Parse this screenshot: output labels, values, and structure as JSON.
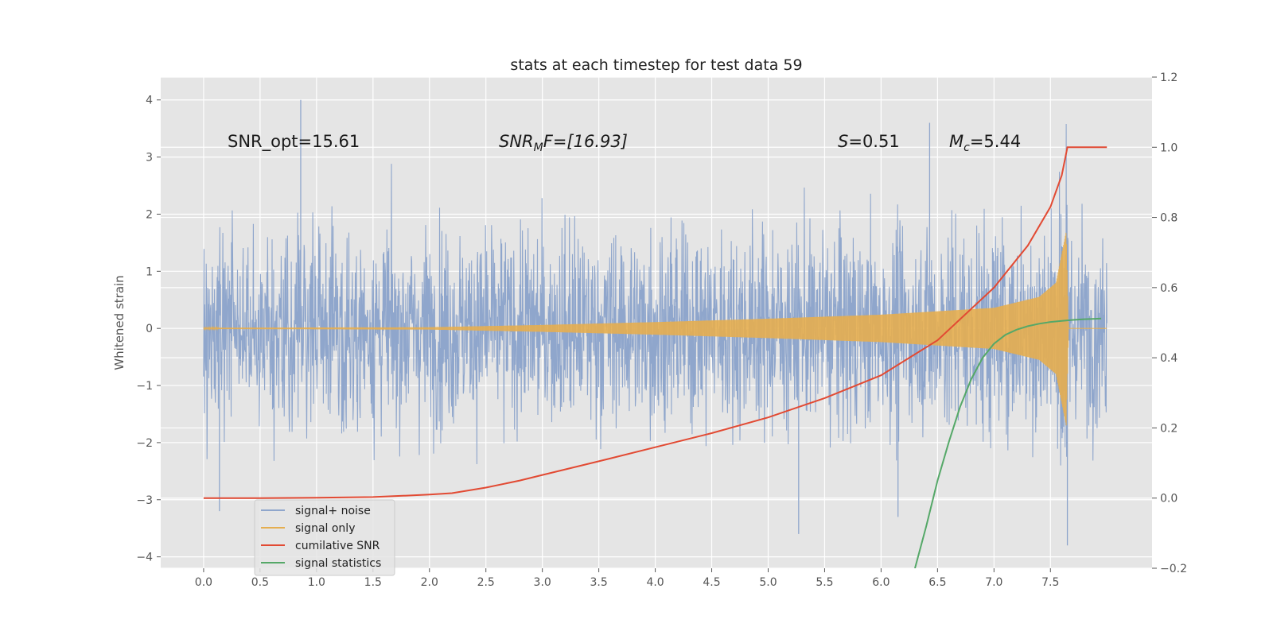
{
  "chart_data": {
    "type": "line",
    "title": "stats at each timestep for test data 59",
    "ylabel": "Whitened strain",
    "xlim": [
      -0.38,
      8.4
    ],
    "xticks": [
      0.0,
      0.5,
      1.0,
      1.5,
      2.0,
      2.5,
      3.0,
      3.5,
      4.0,
      4.5,
      5.0,
      5.5,
      6.0,
      6.5,
      7.0,
      7.5
    ],
    "xtick_labels": [
      "0.0",
      "0.5",
      "1.0",
      "1.5",
      "2.0",
      "2.5",
      "3.0",
      "3.5",
      "4.0",
      "4.5",
      "5.0",
      "5.5",
      "6.0",
      "6.5",
      "7.0",
      "7.5"
    ],
    "ylim_left": [
      -4.2,
      4.4
    ],
    "yticks_left": [
      4,
      3,
      2,
      1,
      0,
      -1,
      -2,
      -3,
      -4
    ],
    "ytick_labels_left": [
      "4",
      "3",
      "2",
      "1",
      "0",
      "−1",
      "−2",
      "−3",
      "−4"
    ],
    "ylim_right": [
      -0.2,
      1.2
    ],
    "yticks_right": [
      1.2,
      1.0,
      0.8,
      0.6,
      0.4,
      0.2,
      0.0,
      -0.2
    ],
    "ytick_labels_right": [
      "1.2",
      "1.0",
      "0.8",
      "0.6",
      "0.4",
      "0.2",
      "0.0",
      "−0.2"
    ],
    "grid": true,
    "legend_position": "lower-left",
    "annotations": {
      "snr_opt": "SNR_opt=15.61",
      "snr_mf_main": "SNR",
      "snr_mf_sub": "M",
      "snr_mf_rest": "F=[16.93]",
      "s_var": "S",
      "s_val": "=0.51",
      "mc_var": "M",
      "mc_sub": "c",
      "mc_val": "=5.44"
    },
    "series": [
      {
        "name": "signal+ noise",
        "color": "#8fa6cc",
        "axis": "left",
        "x_range": [
          0.0,
          8.0
        ],
        "envelope_abs": [
          2.5,
          2.8,
          3.0,
          2.9,
          2.7,
          2.8,
          3.0,
          3.1,
          3.0,
          2.8,
          2.9,
          3.3,
          3.0,
          2.8,
          3.1,
          3.0,
          3.2
        ],
        "peak_points": [
          {
            "x": 0.86,
            "y": 4.0
          },
          {
            "x": 6.43,
            "y": 3.6
          },
          {
            "x": 0.14,
            "y": -3.2
          },
          {
            "x": 6.15,
            "y": -3.3
          },
          {
            "x": 5.27,
            "y": -3.6
          },
          {
            "x": 7.65,
            "y": -3.8
          }
        ]
      },
      {
        "name": "signal only",
        "color": "#e5ae50",
        "axis": "left",
        "envelope": [
          {
            "x": 0.0,
            "y": 0.01
          },
          {
            "x": 2.0,
            "y": 0.02
          },
          {
            "x": 3.0,
            "y": 0.06
          },
          {
            "x": 4.0,
            "y": 0.11
          },
          {
            "x": 5.0,
            "y": 0.17
          },
          {
            "x": 6.0,
            "y": 0.24
          },
          {
            "x": 7.0,
            "y": 0.36
          },
          {
            "x": 7.4,
            "y": 0.55
          },
          {
            "x": 7.55,
            "y": 0.8
          },
          {
            "x": 7.64,
            "y": 1.7
          },
          {
            "x": 7.66,
            "y": 0.0
          },
          {
            "x": 8.0,
            "y": 0.0
          }
        ]
      },
      {
        "name": "cumilative SNR",
        "color": "#e24a33",
        "axis": "right",
        "x": [
          0.0,
          0.5,
          1.0,
          1.5,
          2.0,
          2.2,
          2.5,
          2.8,
          3.0,
          3.5,
          4.0,
          4.5,
          5.0,
          5.5,
          6.0,
          6.5,
          7.0,
          7.3,
          7.5,
          7.6,
          7.65,
          7.66,
          8.0
        ],
        "y": [
          0.0,
          0.0,
          0.001,
          0.003,
          0.01,
          0.014,
          0.03,
          0.05,
          0.066,
          0.105,
          0.145,
          0.185,
          0.23,
          0.285,
          0.35,
          0.45,
          0.6,
          0.72,
          0.83,
          0.92,
          1.0,
          1.0,
          1.0
        ]
      },
      {
        "name": "signal statistics",
        "color": "#55a868",
        "axis": "right",
        "x": [
          6.3,
          6.4,
          6.5,
          6.6,
          6.7,
          6.8,
          6.9,
          7.0,
          7.1,
          7.2,
          7.3,
          7.4,
          7.5,
          7.6,
          7.7,
          7.8,
          7.9,
          7.95
        ],
        "y": [
          -0.2,
          -0.08,
          0.05,
          0.16,
          0.26,
          0.34,
          0.4,
          0.44,
          0.465,
          0.48,
          0.49,
          0.497,
          0.502,
          0.505,
          0.508,
          0.51,
          0.511,
          0.512
        ]
      }
    ]
  }
}
